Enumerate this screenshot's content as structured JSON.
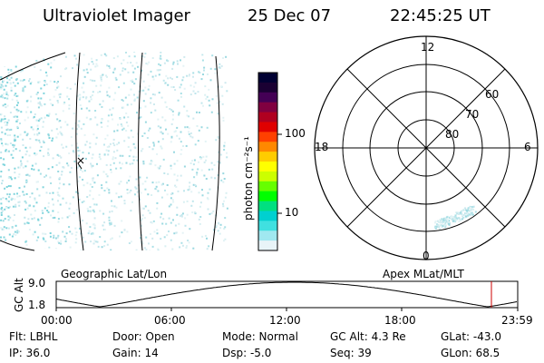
{
  "header": {
    "title": "Ultraviolet Imager",
    "date": "25 Dec 07",
    "time": "22:45:25 UT"
  },
  "colorbar": {
    "unit_label": "photon cm⁻²s⁻¹",
    "tick_100": "100",
    "tick_10": "10",
    "colors": [
      "#000033",
      "#1a0033",
      "#440055",
      "#800040",
      "#b00020",
      "#e00000",
      "#ff4000",
      "#ff8800",
      "#ffcc00",
      "#ffff00",
      "#ccff00",
      "#66ff00",
      "#00ff00",
      "#00e080",
      "#00d0d0",
      "#40e0e0",
      "#a0e8f0",
      "#e8f4f8"
    ]
  },
  "polar_plot": {
    "mlt_12": "12",
    "mlt_18": "18",
    "mlt_6": "6",
    "mlt_0": "0",
    "lat_60": "60",
    "lat_70": "70",
    "lat_80": "80"
  },
  "labels": {
    "left_panel": "Geographic Lat/Lon",
    "right_panel": "Apex MLat/MLT"
  },
  "altitude_plot": {
    "axis_label": "GC Alt",
    "y_max": "9.0",
    "y_min": "1.8",
    "x_ticks": [
      "00:00",
      "06:00",
      "12:00",
      "18:00",
      "23:59"
    ],
    "marker_color": "#cc0000"
  },
  "info": {
    "flt": "Flt: LBHL",
    "ip": "IP: 36.0",
    "door": "Door: Open",
    "gain": "Gain: 14",
    "mode": "Mode: Normal",
    "dsp": "Dsp:   -5.0",
    "gc_alt": "GC Alt: 4.3 Re",
    "seq": "Seq: 39",
    "glat": "GLat: -43.0",
    "glon": "GLon:  68.5"
  }
}
